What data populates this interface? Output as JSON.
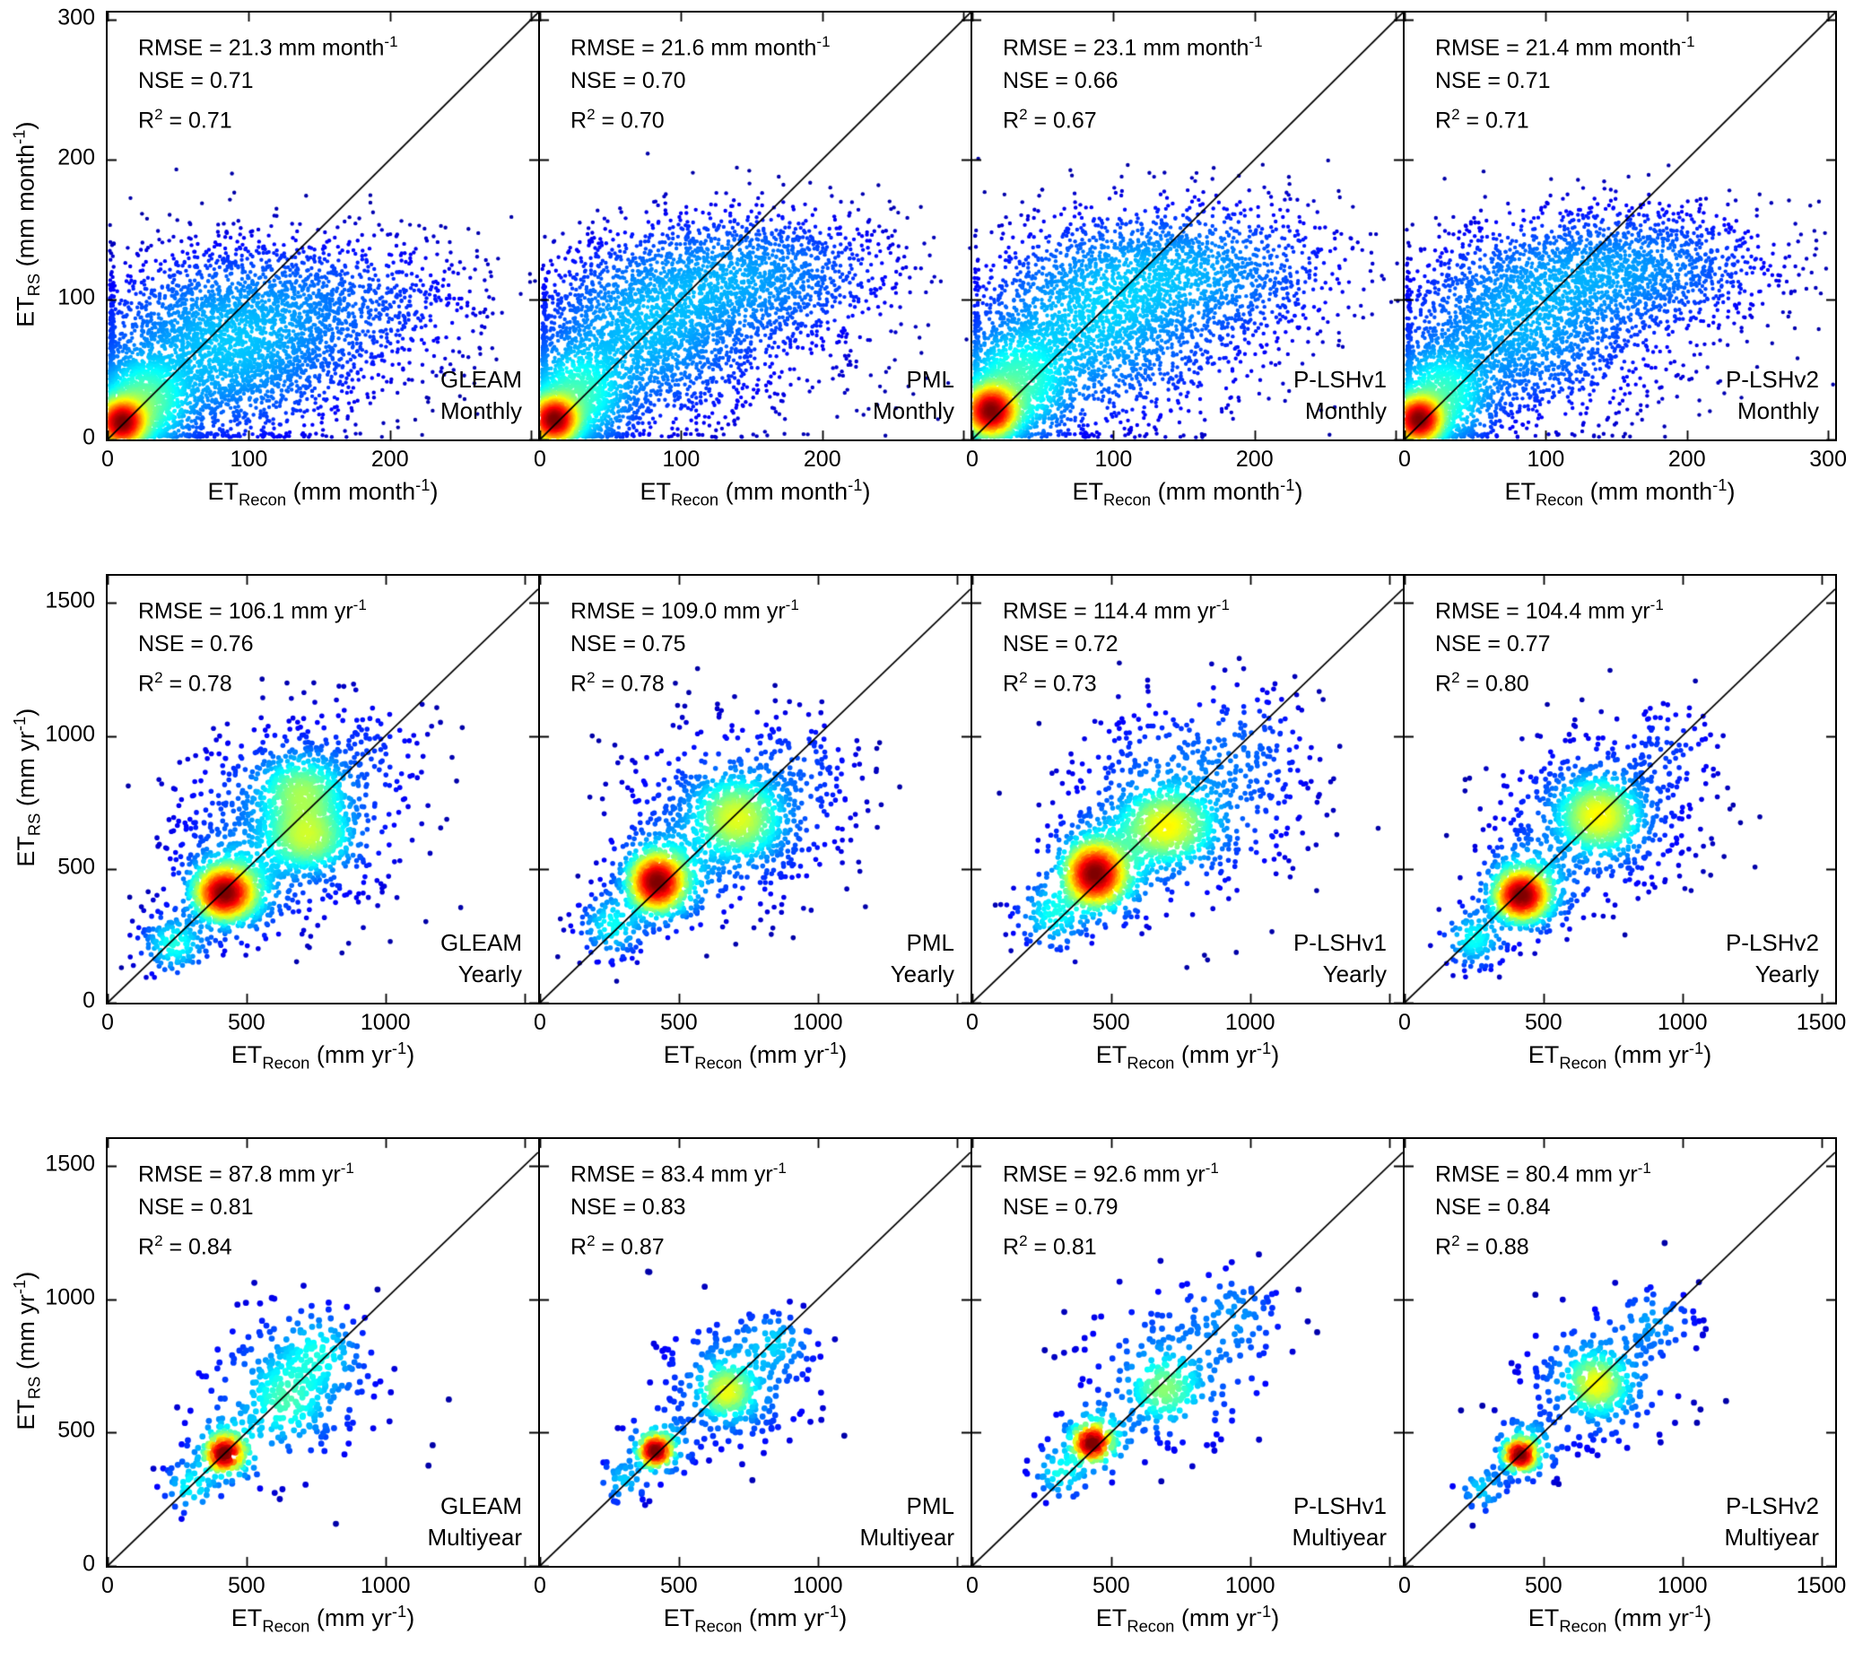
{
  "chart_data": {
    "type": "scatter",
    "subtype": "density-scatter-grid",
    "colormap": "jet",
    "colormap_colors": {
      "low_density": "#00008f",
      "mid_density": "#00ffff",
      "high_density": "#ffff00",
      "peak_density": "#800000"
    },
    "diagonal_line": "1:1 line",
    "grid": false,
    "rows": [
      {
        "timescale": "Monthly",
        "x_axis": {
          "base": "ET",
          "sub": "Recon",
          "unit": " (mm month",
          "sup": "-1",
          "close": ")",
          "ticks": [
            0,
            100,
            200,
            300
          ],
          "range": [
            0,
            305
          ]
        },
        "y_axis": {
          "base": "ET",
          "sub": "RS",
          "unit": " (mm month",
          "sup": "-1",
          "close": ")",
          "ticks": [
            0,
            100,
            200,
            300
          ],
          "range": [
            0,
            305
          ]
        },
        "panels": [
          {
            "model": "GLEAM",
            "timescale": "Monthly",
            "seed": 101,
            "dot_radius": 2.2,
            "stats": {
              "rmse": 21.3,
              "nse": 0.71,
              "r2": 0.71,
              "rmse_text": "RMSE = 21.3 mm month",
              "rmse_sup": "-1",
              "nse_text": "NSE = 0.71",
              "r2_base": "R",
              "r2_sup": "2",
              "r2_rest": " = 0.71"
            },
            "clusters": [
              [
                10,
                12,
                9,
                9,
                1600
              ],
              [
                25,
                25,
                18,
                18,
                1300
              ],
              [
                80,
                60,
                50,
                32,
                2600
              ],
              [
                120,
                100,
                55,
                25,
                900
              ],
              [
                200,
                95,
                45,
                28,
                350
              ]
            ]
          },
          {
            "model": "PML",
            "timescale": "Monthly",
            "seed": 102,
            "dot_radius": 2.2,
            "stats": {
              "rmse": 21.6,
              "nse": 0.7,
              "r2": 0.7,
              "rmse_text": "RMSE = 21.6 mm month",
              "rmse_sup": "-1",
              "nse_text": "NSE = 0.70",
              "r2_base": "R",
              "r2_sup": "2",
              "r2_rest": " = 0.70"
            },
            "clusters": [
              [
                10,
                14,
                9,
                9,
                1500
              ],
              [
                25,
                30,
                20,
                20,
                1200
              ],
              [
                70,
                75,
                40,
                32,
                1700
              ],
              [
                130,
                115,
                45,
                25,
                1100
              ],
              [
                185,
                120,
                45,
                25,
                450
              ],
              [
                120,
                60,
                70,
                35,
                400
              ]
            ]
          },
          {
            "model": "P-LSHv1",
            "timescale": "Monthly",
            "seed": 103,
            "dot_radius": 2.2,
            "stats": {
              "rmse": 23.1,
              "nse": 0.66,
              "r2": 0.67,
              "rmse_text": "RMSE = 23.1 mm month",
              "rmse_sup": "-1",
              "nse_text": "NSE = 0.66",
              "r2_base": "R",
              "r2_sup": "2",
              "r2_rest": " = 0.67"
            },
            "clusters": [
              [
                13,
                20,
                10,
                10,
                1500
              ],
              [
                30,
                38,
                22,
                22,
                1200
              ],
              [
                80,
                85,
                42,
                33,
                1600
              ],
              [
                140,
                120,
                45,
                25,
                1000
              ],
              [
                200,
                120,
                45,
                28,
                400
              ],
              [
                120,
                55,
                60,
                30,
                400
              ]
            ]
          },
          {
            "model": "P-LSHv2",
            "timescale": "Monthly",
            "seed": 104,
            "dot_radius": 2.2,
            "stats": {
              "rmse": 21.4,
              "nse": 0.71,
              "r2": 0.71,
              "rmse_text": "RMSE = 21.4 mm month",
              "rmse_sup": "-1",
              "nse_text": "NSE = 0.71",
              "r2_base": "R",
              "r2_sup": "2",
              "r2_rest": " = 0.71"
            },
            "clusters": [
              [
                10,
                14,
                9,
                9,
                1500
              ],
              [
                25,
                30,
                20,
                20,
                1200
              ],
              [
                75,
                80,
                42,
                32,
                1600
              ],
              [
                135,
                120,
                48,
                24,
                1100
              ],
              [
                195,
                125,
                45,
                24,
                450
              ],
              [
                120,
                60,
                60,
                30,
                350
              ]
            ]
          }
        ]
      },
      {
        "timescale": "Yearly",
        "x_axis": {
          "base": "ET",
          "sub": "Recon",
          "unit": " (mm yr",
          "sup": "-1",
          "close": ")",
          "ticks": [
            0,
            500,
            1000,
            1500
          ],
          "range": [
            0,
            1550
          ]
        },
        "y_axis": {
          "base": "ET",
          "sub": "RS",
          "unit": " (mm yr",
          "sup": "-1",
          "close": ")",
          "ticks": [
            0,
            500,
            1000,
            1500
          ],
          "range": [
            0,
            1600
          ]
        },
        "panels": [
          {
            "model": "GLEAM",
            "timescale": "Yearly",
            "seed": 105,
            "dot_radius": 2.8,
            "stats": {
              "rmse": 106.1,
              "nse": 0.76,
              "r2": 0.78,
              "rmse_text": "RMSE = 106.1 mm yr",
              "rmse_sup": "-1",
              "nse_text": "NSE = 0.76",
              "r2_base": "R",
              "r2_sup": "2",
              "r2_rest": " = 0.78"
            },
            "clusters": [
              [
                420,
                410,
                55,
                50,
                800
              ],
              [
                450,
                430,
                90,
                90,
                500
              ],
              [
                700,
                790,
                85,
                75,
                450
              ],
              [
                720,
                620,
                85,
                70,
                500
              ],
              [
                650,
                680,
                210,
                190,
                650
              ],
              [
                240,
                220,
                65,
                60,
                180
              ],
              [
                950,
                950,
                120,
                120,
                80
              ]
            ]
          },
          {
            "model": "PML",
            "timescale": "Yearly",
            "seed": 106,
            "dot_radius": 2.8,
            "stats": {
              "rmse": 109.0,
              "nse": 0.75,
              "r2": 0.78,
              "rmse_text": "RMSE = 109.0 mm yr",
              "rmse_sup": "-1",
              "nse_text": "NSE = 0.75",
              "r2_base": "R",
              "r2_sup": "2",
              "r2_rest": " = 0.78"
            },
            "clusters": [
              [
                420,
                450,
                50,
                55,
                750
              ],
              [
                450,
                470,
                90,
                90,
                450
              ],
              [
                710,
                690,
                85,
                80,
                600
              ],
              [
                700,
                700,
                200,
                170,
                550
              ],
              [
                260,
                290,
                65,
                65,
                160
              ],
              [
                950,
                900,
                110,
                110,
                70
              ]
            ]
          },
          {
            "model": "P-LSHv1",
            "timescale": "Yearly",
            "seed": 107,
            "dot_radius": 2.8,
            "stats": {
              "rmse": 114.4,
              "nse": 0.72,
              "r2": 0.73,
              "rmse_text": "RMSE = 114.4 mm yr",
              "rmse_sup": "-1",
              "nse_text": "NSE = 0.72",
              "r2_base": "R",
              "r2_sup": "2",
              "r2_rest": " = 0.73"
            },
            "clusters": [
              [
                440,
                480,
                55,
                60,
                700
              ],
              [
                470,
                500,
                95,
                95,
                450
              ],
              [
                700,
                660,
                90,
                75,
                550
              ],
              [
                760,
                760,
                210,
                190,
                550
              ],
              [
                290,
                330,
                70,
                70,
                150
              ],
              [
                1000,
                980,
                120,
                120,
                80
              ]
            ]
          },
          {
            "model": "P-LSHv2",
            "timescale": "Yearly",
            "seed": 108,
            "dot_radius": 2.8,
            "stats": {
              "rmse": 104.4,
              "nse": 0.77,
              "r2": 0.8,
              "rmse_text": "RMSE = 104.4 mm yr",
              "rmse_sup": "-1",
              "nse_text": "NSE = 0.77",
              "r2_base": "R",
              "r2_sup": "2",
              "r2_rest": " = 0.80"
            },
            "clusters": [
              [
                420,
                400,
                50,
                48,
                700
              ],
              [
                440,
                430,
                85,
                85,
                420
              ],
              [
                700,
                700,
                80,
                75,
                650
              ],
              [
                680,
                690,
                180,
                160,
                450
              ],
              [
                250,
                240,
                60,
                60,
                150
              ],
              [
                950,
                960,
                110,
                110,
                80
              ]
            ]
          }
        ]
      },
      {
        "timescale": "Multiyear",
        "x_axis": {
          "base": "ET",
          "sub": "Recon",
          "unit": " (mm yr",
          "sup": "-1",
          "close": ")",
          "ticks": [
            0,
            500,
            1000,
            1500
          ],
          "range": [
            0,
            1550
          ]
        },
        "y_axis": {
          "base": "ET",
          "sub": "RS",
          "unit": " (mm yr",
          "sup": "-1",
          "close": ")",
          "ticks": [
            0,
            500,
            1000,
            1500
          ],
          "range": [
            0,
            1600
          ]
        },
        "panels": [
          {
            "model": "GLEAM",
            "timescale": "Multiyear",
            "seed": 109,
            "dot_radius": 3.4,
            "stats": {
              "rmse": 87.8,
              "nse": 0.81,
              "r2": 0.84,
              "rmse_text": "RMSE = 87.8 mm yr",
              "rmse_sup": "-1",
              "nse_text": "NSE = 0.81",
              "r2_base": "R",
              "r2_sup": "2",
              "r2_rest": " = 0.84"
            },
            "clusters": [
              [
                420,
                420,
                35,
                35,
                150
              ],
              [
                440,
                440,
                70,
                70,
                110
              ],
              [
                640,
                620,
                80,
                85,
                120
              ],
              [
                760,
                800,
                80,
                80,
                90
              ],
              [
                650,
                670,
                180,
                170,
                200
              ],
              [
                300,
                300,
                55,
                55,
                50
              ]
            ]
          },
          {
            "model": "PML",
            "timescale": "Multiyear",
            "seed": 110,
            "dot_radius": 3.4,
            "stats": {
              "rmse": 83.4,
              "nse": 0.83,
              "r2": 0.87,
              "rmse_text": "RMSE = 83.4 mm yr",
              "rmse_sup": "-1",
              "nse_text": "NSE = 0.83",
              "r2_base": "R",
              "r2_sup": "2",
              "r2_rest": " = 0.87"
            },
            "clusters": [
              [
                415,
                430,
                30,
                30,
                150
              ],
              [
                430,
                450,
                60,
                60,
                100
              ],
              [
                670,
                650,
                50,
                50,
                110
              ],
              [
                690,
                670,
                90,
                90,
                110
              ],
              [
                700,
                700,
                160,
                150,
                180
              ],
              [
                850,
                840,
                70,
                60,
                60
              ],
              [
                300,
                320,
                50,
                50,
                40
              ]
            ]
          },
          {
            "model": "P-LSHv1",
            "timescale": "Multiyear",
            "seed": 111,
            "dot_radius": 3.4,
            "stats": {
              "rmse": 92.6,
              "nse": 0.79,
              "r2": 0.81,
              "rmse_text": "RMSE = 92.6 mm yr",
              "rmse_sup": "-1",
              "nse_text": "NSE = 0.79",
              "r2_base": "R",
              "r2_sup": "2",
              "r2_rest": " = 0.81"
            },
            "clusters": [
              [
                430,
                460,
                35,
                35,
                140
              ],
              [
                450,
                480,
                70,
                70,
                100
              ],
              [
                690,
                660,
                70,
                70,
                120
              ],
              [
                740,
                750,
                180,
                160,
                190
              ],
              [
                950,
                950,
                90,
                90,
                50
              ],
              [
                320,
                350,
                55,
                55,
                50
              ]
            ]
          },
          {
            "model": "P-LSHv2",
            "timescale": "Multiyear",
            "seed": 112,
            "dot_radius": 3.4,
            "stats": {
              "rmse": 80.4,
              "nse": 0.84,
              "r2": 0.88,
              "rmse_text": "RMSE = 80.4 mm yr",
              "rmse_sup": "-1",
              "nse_text": "NSE = 0.84",
              "r2_base": "R",
              "r2_sup": "2",
              "r2_rest": " = 0.88"
            },
            "clusters": [
              [
                415,
                415,
                30,
                30,
                140
              ],
              [
                435,
                440,
                60,
                60,
                100
              ],
              [
                690,
                680,
                55,
                55,
                130
              ],
              [
                700,
                690,
                95,
                95,
                110
              ],
              [
                690,
                700,
                150,
                140,
                160
              ],
              [
                900,
                920,
                80,
                70,
                60
              ],
              [
                280,
                290,
                50,
                50,
                40
              ]
            ]
          }
        ]
      }
    ]
  }
}
